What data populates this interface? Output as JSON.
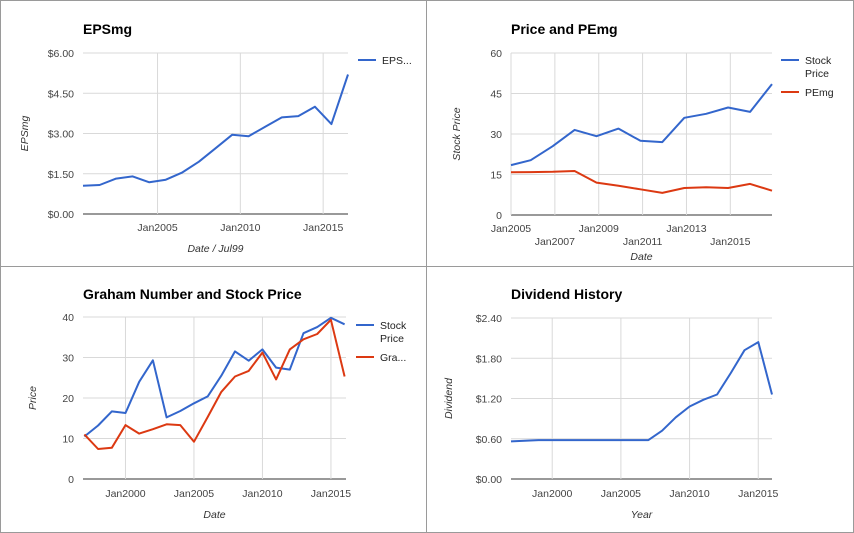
{
  "chart_data": [
    {
      "type": "line",
      "title": "EPSmg",
      "xlabel": "Date / Jul99",
      "ylabel": "EPSmg",
      "ylim": [
        0,
        6
      ],
      "yticks": [
        0,
        1.5,
        3,
        4.5,
        6
      ],
      "ytick_labels": [
        "$0.00",
        "$1.50",
        "$3.00",
        "$4.50",
        "$6.00"
      ],
      "xlim": [
        2000.5,
        2016.5
      ],
      "xticks": [
        2005,
        2010,
        2015
      ],
      "xtick_labels": [
        "Jan2005",
        "Jan2010",
        "Jan2015"
      ],
      "legend_position": "right",
      "series": [
        {
          "name": "EPS...",
          "color": "#3366cc",
          "x": [
            2000.5,
            2001.5,
            2002.5,
            2003.5,
            2004.5,
            2005.5,
            2006.5,
            2007.5,
            2008.5,
            2009.5,
            2010.5,
            2011.5,
            2012.5,
            2013.5,
            2014.5,
            2015.5,
            2016.5
          ],
          "y": [
            1.05,
            1.08,
            1.32,
            1.4,
            1.18,
            1.28,
            1.55,
            1.95,
            2.45,
            2.95,
            2.9,
            3.25,
            3.6,
            3.65,
            4.0,
            3.35,
            5.2
          ]
        }
      ]
    },
    {
      "type": "line",
      "title": "Price and PEmg",
      "xlabel": "Date",
      "ylabel": "Stock Price",
      "ylim": [
        0,
        60
      ],
      "yticks": [
        0,
        15,
        30,
        45,
        60
      ],
      "ytick_labels": [
        "0",
        "15",
        "30",
        "45",
        "60"
      ],
      "xlim": [
        2005,
        2016.9
      ],
      "xticks": [
        2005,
        2007,
        2009,
        2011,
        2013,
        2015
      ],
      "xtick_labels": [
        "Jan2005",
        "Jan2007",
        "Jan2009",
        "Jan2011",
        "Jan2013",
        "Jan2015"
      ],
      "legend_position": "right",
      "series": [
        {
          "name": "Stock Price",
          "color": "#3366cc",
          "x": [
            2005,
            2005.9,
            2006.9,
            2007.9,
            2008.9,
            2009.9,
            2010.9,
            2011.9,
            2012.9,
            2013.9,
            2014.9,
            2015.9,
            2016.9
          ],
          "y": [
            18.5,
            20.3,
            25.5,
            31.5,
            29.2,
            32.0,
            27.5,
            27.0,
            36.0,
            37.5,
            39.8,
            38.2,
            48.5
          ]
        },
        {
          "name": "PEmg",
          "color": "#dc3912",
          "x": [
            2005,
            2005.9,
            2006.9,
            2007.9,
            2008.9,
            2009.9,
            2010.9,
            2011.9,
            2012.9,
            2013.9,
            2014.9,
            2015.9,
            2016.9
          ],
          "y": [
            15.8,
            15.9,
            16.0,
            16.3,
            12.0,
            10.8,
            9.5,
            8.2,
            10.0,
            10.3,
            10.0,
            11.5,
            9.0
          ]
        }
      ]
    },
    {
      "type": "line",
      "title": "Graham Number and Stock Price",
      "xlabel": "Date",
      "ylabel": "Price",
      "ylim": [
        0,
        40
      ],
      "yticks": [
        0,
        10,
        20,
        30,
        40
      ],
      "ytick_labels": [
        "0",
        "10",
        "20",
        "30",
        "40"
      ],
      "xlim": [
        1996.9,
        2016.1
      ],
      "xticks": [
        2000,
        2005,
        2010,
        2015
      ],
      "xtick_labels": [
        "Jan2000",
        "Jan2005",
        "Jan2010",
        "Jan2015"
      ],
      "legend_position": "right",
      "series": [
        {
          "name": "Stock Price",
          "color": "#3366cc",
          "x": [
            1997,
            1998,
            1999,
            2000,
            2001,
            2002,
            2003,
            2004,
            2005,
            2006,
            2007,
            2008,
            2009,
            2010,
            2011,
            2012,
            2013,
            2014,
            2015,
            2016
          ],
          "y": [
            10.5,
            13.2,
            16.7,
            16.3,
            24.0,
            29.3,
            15.2,
            16.8,
            18.7,
            20.4,
            25.5,
            31.5,
            29.2,
            32.0,
            27.5,
            27.0,
            36.0,
            37.5,
            39.8,
            38.2
          ]
        },
        {
          "name": "Gra...",
          "color": "#dc3912",
          "x": [
            1997,
            1998,
            1999,
            2000,
            2001,
            2002,
            2003,
            2004,
            2005,
            2006,
            2007,
            2008,
            2009,
            2010,
            2011,
            2012,
            2013,
            2014,
            2015,
            2016
          ],
          "y": [
            11.0,
            7.4,
            7.7,
            13.3,
            11.2,
            12.3,
            13.5,
            13.3,
            9.2,
            15.3,
            21.5,
            25.3,
            26.7,
            31.2,
            24.6,
            32.0,
            34.5,
            35.8,
            39.3,
            25.3
          ]
        }
      ]
    },
    {
      "type": "line",
      "title": "Dividend History",
      "xlabel": "Year",
      "ylabel": "Dividend",
      "ylim": [
        0,
        2.4
      ],
      "yticks": [
        0,
        0.6,
        1.2,
        1.8,
        2.4
      ],
      "ytick_labels": [
        "$0.00",
        "$0.60",
        "$1.20",
        "$1.80",
        "$2.40"
      ],
      "xlim": [
        1997,
        2016
      ],
      "xticks": [
        2000,
        2005,
        2010,
        2015
      ],
      "xtick_labels": [
        "Jan2000",
        "Jan2005",
        "Jan2010",
        "Jan2015"
      ],
      "series": [
        {
          "name": "",
          "color": "#3366cc",
          "x": [
            1997,
            1999,
            2001,
            2003,
            2005,
            2007,
            2008,
            2009,
            2010,
            2011,
            2012,
            2013,
            2014,
            2015,
            2016
          ],
          "y": [
            0.56,
            0.58,
            0.58,
            0.58,
            0.58,
            0.58,
            0.72,
            0.92,
            1.08,
            1.18,
            1.26,
            1.58,
            1.92,
            2.04,
            1.26
          ]
        }
      ]
    }
  ]
}
